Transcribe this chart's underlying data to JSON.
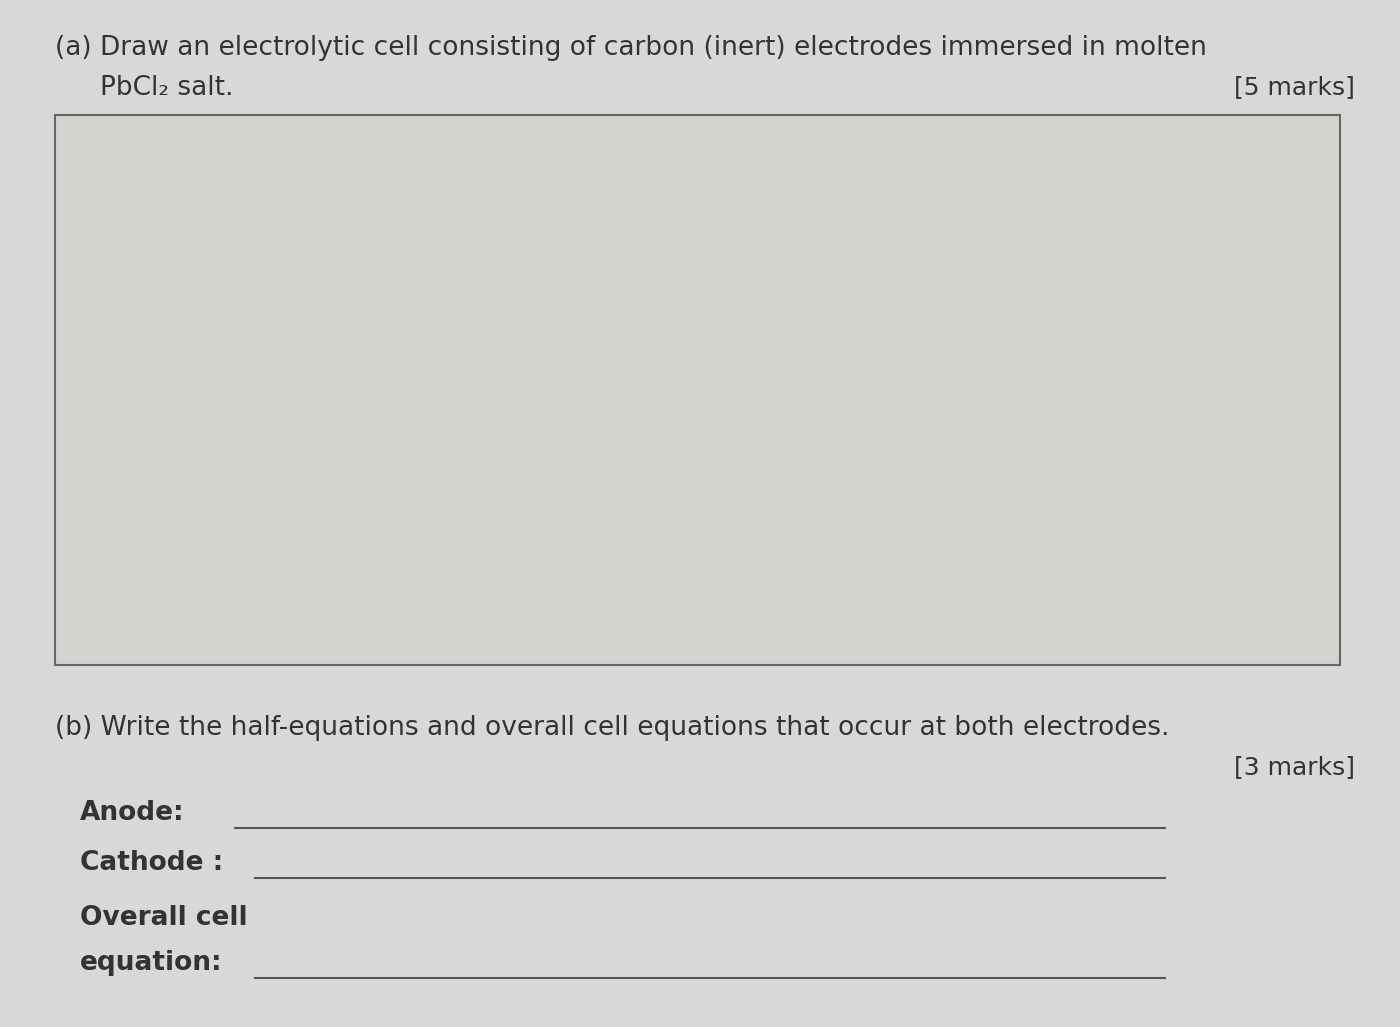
{
  "bg_color": "#d8d8d8",
  "paper_color": "#d8d5d0",
  "marks_a": "[5 marks]",
  "marks_b": "[3 marks]",
  "label_anode": "Anode:",
  "label_cathode": "Cathode :",
  "label_overall1": "Overall cell",
  "label_overall2": "equation:",
  "font_size_main": 19,
  "font_size_label": 19,
  "font_size_marks": 18,
  "text_color": "#333333",
  "line_color": "#555555",
  "box_color": "#d4d2ce"
}
